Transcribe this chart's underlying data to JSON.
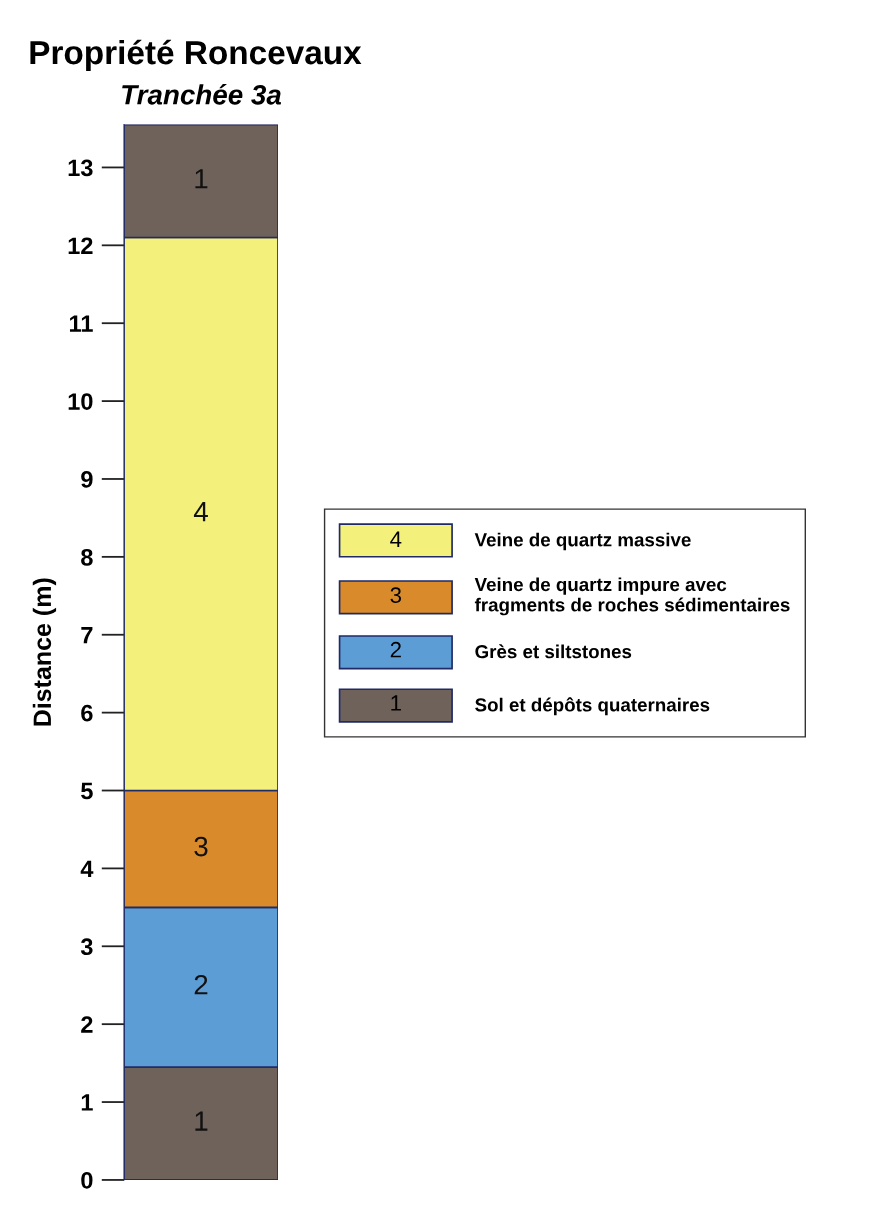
{
  "chart_data": {
    "type": "bar",
    "title": "Propriété Roncevaux",
    "subtitle": "Tranchée 3a",
    "ylabel": "Distance (m)",
    "categories": [
      null
    ],
    "stacked": true,
    "series": [
      {
        "name": "Sol et dépôts quaternaires",
        "color": "#6f625b",
        "values": [
          1.45
        ]
      },
      {
        "name": "Grès et siltstones",
        "color": "#5d9dd6",
        "values": [
          2.05
        ]
      },
      {
        "name": "Veine de quartz impure avec\nfragments de roches sédimentaires",
        "color": "#d98b2b",
        "values": [
          1.5
        ]
      },
      {
        "name": "Veine de quartz massive",
        "color": "#f4f07c",
        "values": [
          7.1
        ]
      },
      {
        "color": "#6f625b",
        "values": [
          1.45
        ]
      }
    ],
    "annotations": [
      "1",
      "2",
      "3",
      "4",
      "1"
    ],
    "ylim": [
      0,
      13.55
    ],
    "yticks": [
      0,
      1,
      2,
      3,
      4,
      5,
      6,
      7,
      8,
      9,
      10,
      11,
      12,
      13
    ],
    "grid": false,
    "legend": "right"
  }
}
